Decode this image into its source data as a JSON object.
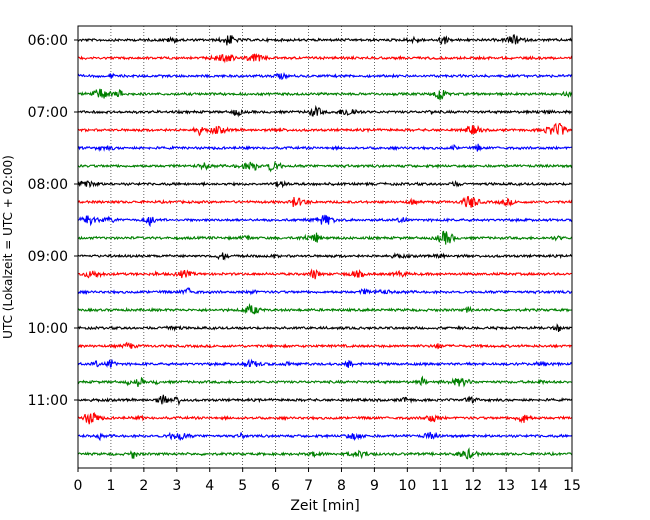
{
  "chart_data": {
    "type": "line",
    "title": "",
    "xlabel": "Zeit  [min]",
    "ylabel": "UTC (Lokalzeit = UTC + 02:00)",
    "xlim": [
      0,
      15
    ],
    "x_ticks": [
      "0",
      "1",
      "2",
      "3",
      "4",
      "5",
      "6",
      "7",
      "8",
      "9",
      "10",
      "11",
      "12",
      "13",
      "14",
      "15"
    ],
    "y_ticks": [
      "06:00",
      "07:00",
      "08:00",
      "09:00",
      "10:00",
      "11:00"
    ],
    "grid": "vertical dotted at each minute",
    "colors": [
      "#000000",
      "#ff0000",
      "#0000ff",
      "#008000"
    ],
    "series": [
      {
        "start": "06:00",
        "color": "#000000"
      },
      {
        "start": "06:15",
        "color": "#ff0000"
      },
      {
        "start": "06:30",
        "color": "#0000ff"
      },
      {
        "start": "06:45",
        "color": "#008000"
      },
      {
        "start": "07:00",
        "color": "#000000"
      },
      {
        "start": "07:15",
        "color": "#ff0000"
      },
      {
        "start": "07:30",
        "color": "#0000ff"
      },
      {
        "start": "07:45",
        "color": "#008000"
      },
      {
        "start": "08:00",
        "color": "#000000"
      },
      {
        "start": "08:15",
        "color": "#ff0000"
      },
      {
        "start": "08:30",
        "color": "#0000ff"
      },
      {
        "start": "08:45",
        "color": "#008000"
      },
      {
        "start": "09:00",
        "color": "#000000"
      },
      {
        "start": "09:15",
        "color": "#ff0000"
      },
      {
        "start": "09:30",
        "color": "#0000ff"
      },
      {
        "start": "09:45",
        "color": "#008000"
      },
      {
        "start": "10:00",
        "color": "#000000"
      },
      {
        "start": "10:15",
        "color": "#ff0000"
      },
      {
        "start": "10:30",
        "color": "#0000ff"
      },
      {
        "start": "10:45",
        "color": "#008000"
      },
      {
        "start": "11:00",
        "color": "#000000"
      },
      {
        "start": "11:15",
        "color": "#ff0000"
      },
      {
        "start": "11:30",
        "color": "#0000ff"
      },
      {
        "start": "11:45",
        "color": "#008000"
      }
    ]
  }
}
